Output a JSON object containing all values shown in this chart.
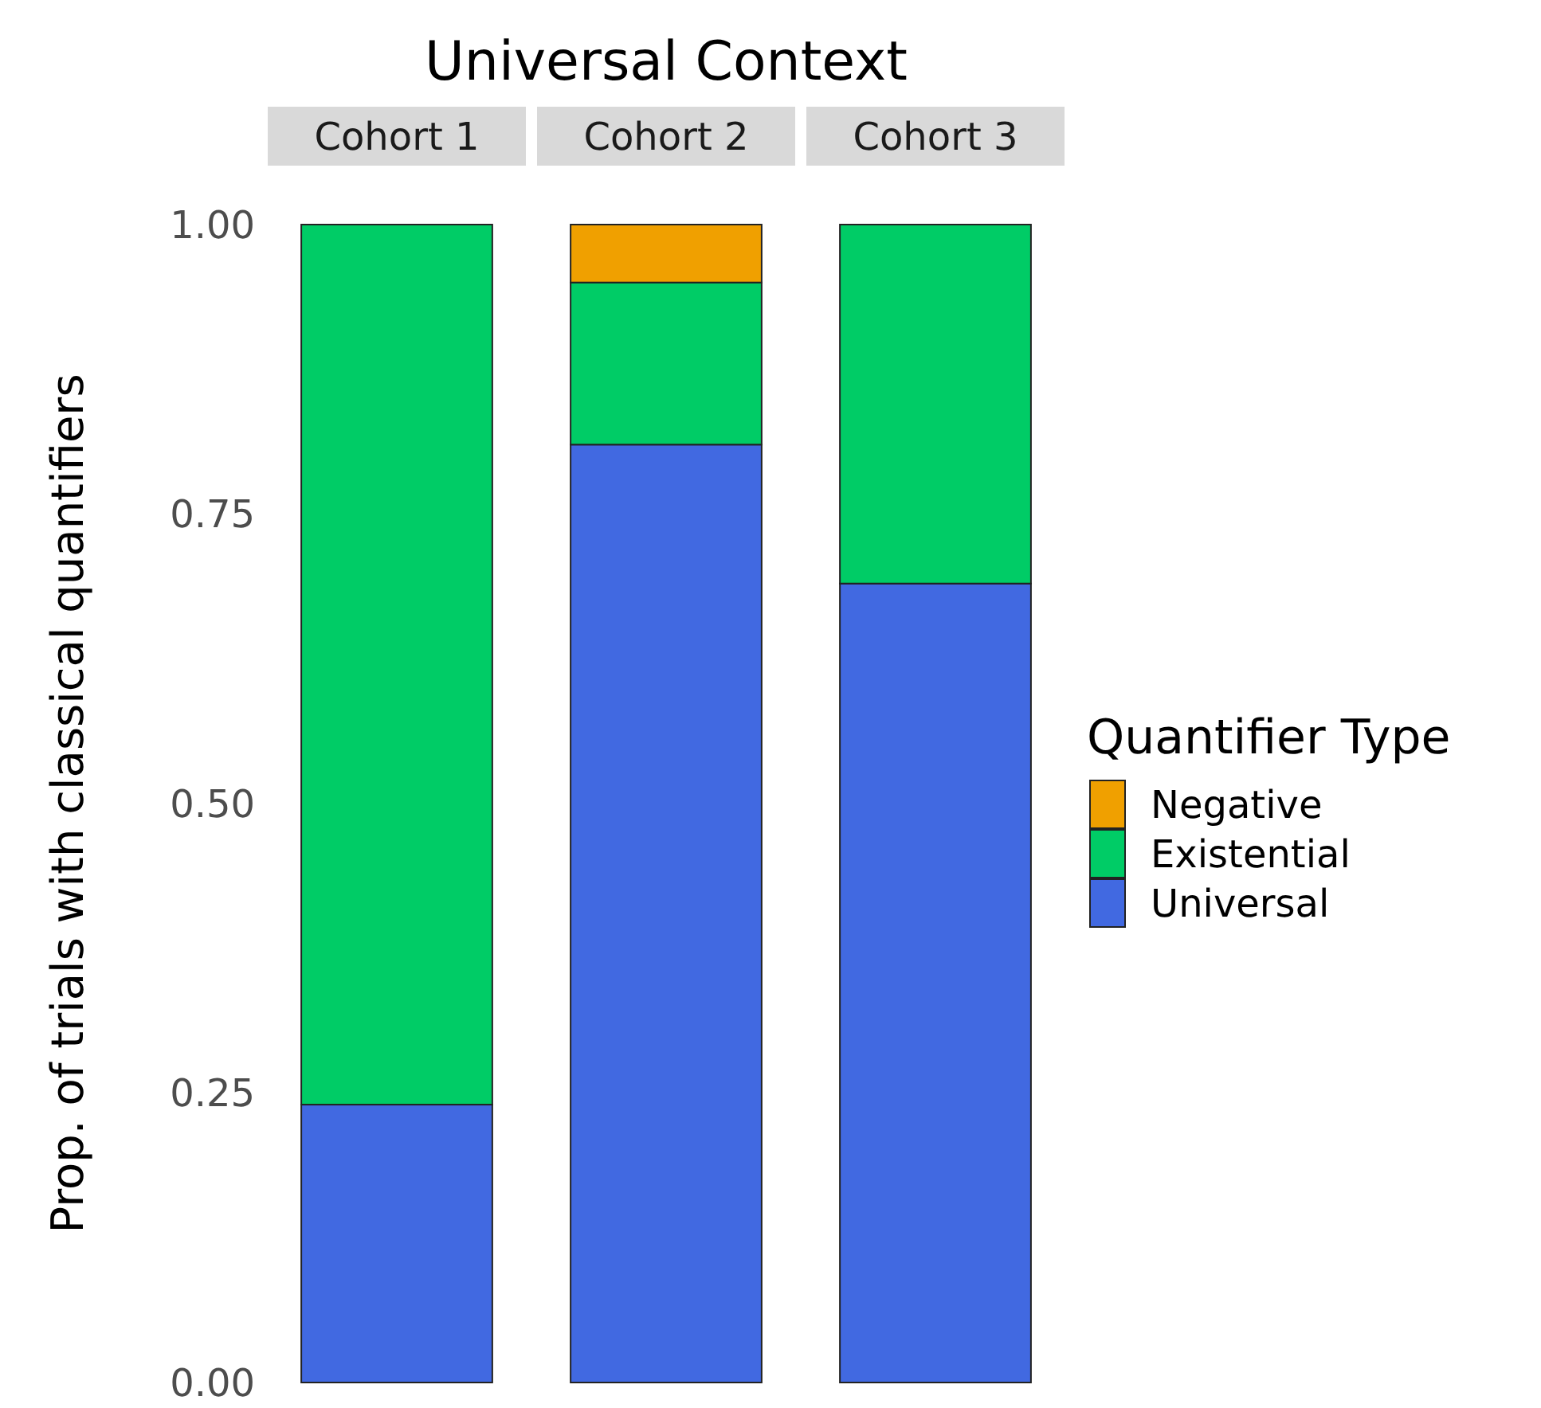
{
  "chart_data": {
    "type": "bar",
    "title": "Universal Context",
    "ylabel": "Prop. of trials with classical quantifiers",
    "legend_title": "Quantifier Type",
    "categories": [
      "Cohort 1",
      "Cohort 2",
      "Cohort 3"
    ],
    "stacked": true,
    "ylim": [
      0,
      1
    ],
    "yticks": [
      {
        "value": 0,
        "label": "0.00"
      },
      {
        "value": 0.25,
        "label": "0.25"
      },
      {
        "value": 0.5,
        "label": "0.50"
      },
      {
        "value": 0.75,
        "label": "0.75"
      },
      {
        "value": 1,
        "label": "1.00"
      }
    ],
    "grid": false,
    "legend": "right",
    "series": [
      {
        "name": "Universal",
        "color": "#4169e1",
        "values": [
          0.24,
          0.81,
          0.69
        ]
      },
      {
        "name": "Existential",
        "color": "#00cc66",
        "values": [
          0.76,
          0.14,
          0.31
        ]
      },
      {
        "name": "Negative",
        "color": "#f0a000",
        "values": [
          null,
          0.05,
          null
        ]
      }
    ]
  }
}
